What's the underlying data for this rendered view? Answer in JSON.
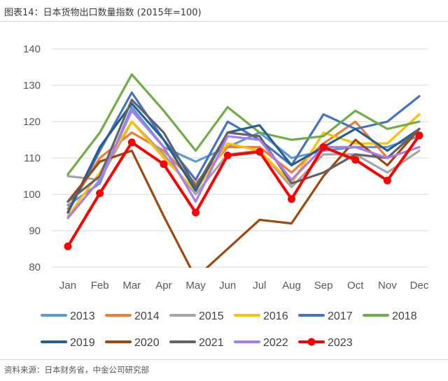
{
  "title": "图表14：日本货物出口数量指数 (2015年=100)",
  "source": "资料来源：日本财务省，中金公司研究部",
  "chart_data": {
    "type": "line",
    "title": "",
    "xlabel": "",
    "ylabel": "",
    "categories": [
      "Jan",
      "Feb",
      "Mar",
      "Apr",
      "May",
      "Jun",
      "Jul",
      "Aug",
      "Sep",
      "Oct",
      "Nov",
      "Dec"
    ],
    "ylim": [
      80,
      140
    ],
    "yticks": [
      80,
      90,
      100,
      110,
      120,
      130,
      140
    ],
    "grid": true,
    "legend_position": "bottom",
    "series": [
      {
        "name": "2013",
        "color": "#5B9BD5",
        "values": [
          97,
          103,
          124,
          113,
          109,
          113,
          117,
          110,
          112,
          113,
          113,
          116
        ]
      },
      {
        "name": "2014",
        "color": "#ED7D31",
        "values": [
          96,
          110,
          117,
          112,
          103,
          113,
          113,
          106,
          114,
          120,
          110,
          118
        ]
      },
      {
        "name": "2015",
        "color": "#A5A5A5",
        "values": [
          105,
          104,
          120,
          111,
          100,
          111,
          112,
          102,
          111,
          111,
          106,
          112
        ]
      },
      {
        "name": "2016",
        "color": "#FFC000",
        "values": [
          94,
          106,
          120,
          110,
          101,
          114,
          112,
          103,
          117,
          114,
          114,
          122
        ]
      },
      {
        "name": "2017",
        "color": "#4472C4",
        "values": [
          95,
          112,
          128,
          115,
          104,
          120,
          115,
          108,
          122,
          118,
          120,
          127
        ]
      },
      {
        "name": "2018",
        "color": "#70AD47",
        "values": [
          105.5,
          117,
          133,
          123,
          112,
          124,
          117,
          115,
          116,
          123,
          118,
          120
        ]
      },
      {
        "name": "2019",
        "color": "#255E91",
        "values": [
          95,
          113,
          125,
          115,
          101,
          117,
          119,
          108,
          113,
          118,
          112,
          118
        ]
      },
      {
        "name": "2020",
        "color": "#9E480E",
        "values": [
          98,
          109,
          112,
          94,
          77,
          85,
          93,
          92,
          105,
          115,
          108,
          118
        ]
      },
      {
        "name": "2021",
        "color": "#636363",
        "values": [
          98,
          105,
          126,
          117,
          102,
          117,
          116,
          103,
          106,
          111,
          110,
          118
        ]
      },
      {
        "name": "2022",
        "color": "#A97BF2",
        "values": [
          93.5,
          104,
          123,
          113,
          98,
          116,
          115,
          104,
          113,
          113,
          110,
          113
        ]
      },
      {
        "name": "2023",
        "color": "#FF0000",
        "values": [
          85.7,
          100.3,
          114.3,
          108.3,
          95,
          110.7,
          111.7,
          98.7,
          113,
          109.5,
          103.8,
          116.2
        ]
      }
    ]
  }
}
